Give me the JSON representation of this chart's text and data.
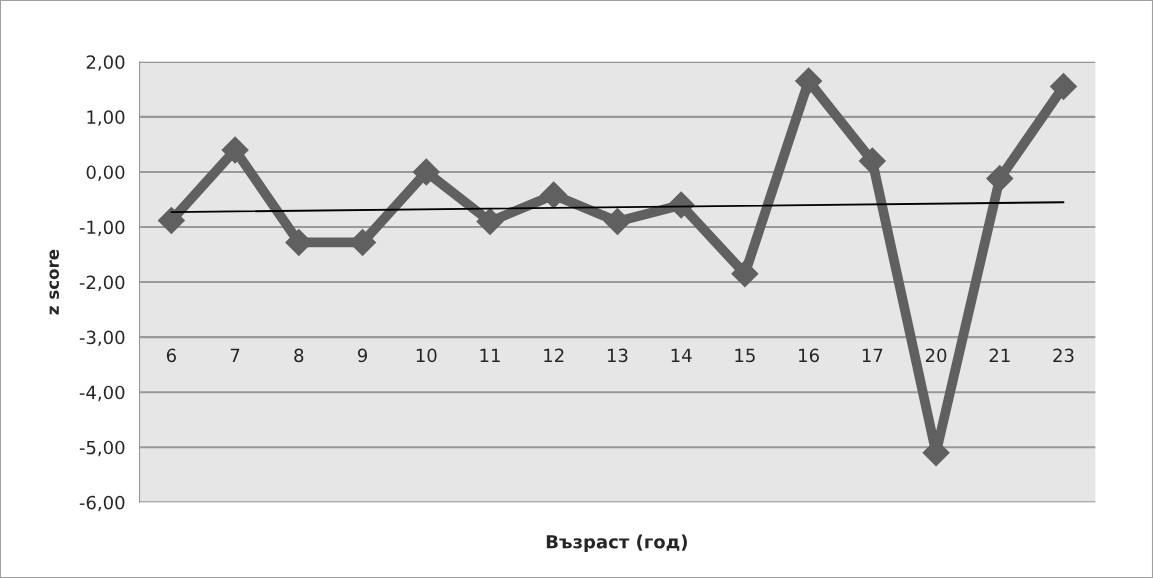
{
  "chart_data": {
    "type": "line",
    "xlabel": "Възраст (год)",
    "ylabel": "z score",
    "categories": [
      "6",
      "7",
      "8",
      "9",
      "10",
      "11",
      "12",
      "13",
      "14",
      "15",
      "16",
      "17",
      "20",
      "21",
      "23"
    ],
    "series": [
      {
        "color": "#606060",
        "values": [
          -0.88,
          0.4,
          -1.28,
          -1.28,
          0.0,
          -0.9,
          -0.42,
          -0.9,
          -0.6,
          -1.85,
          1.65,
          0.2,
          -5.1,
          -0.12,
          1.55
        ],
        "marker": "diamond"
      },
      {
        "type": "line",
        "color": "#000000",
        "x": [
          "6",
          "23"
        ],
        "values": [
          -0.73,
          -0.55
        ],
        "marker": "none"
      }
    ],
    "ylim": [
      -6,
      2
    ],
    "yticks": [
      {
        "value": -6,
        "label": "-6,00"
      },
      {
        "value": -5,
        "label": "-5,00"
      },
      {
        "value": -4,
        "label": "-4,00"
      },
      {
        "value": -3,
        "label": "-3,00"
      },
      {
        "value": -2,
        "label": "-2,00"
      },
      {
        "value": -1,
        "label": "-1,00"
      },
      {
        "value": 0,
        "label": "0,00"
      },
      {
        "value": 1,
        "label": "1,00"
      },
      {
        "value": 2,
        "label": "2,00"
      }
    ],
    "grid": "y",
    "legend": false
  }
}
